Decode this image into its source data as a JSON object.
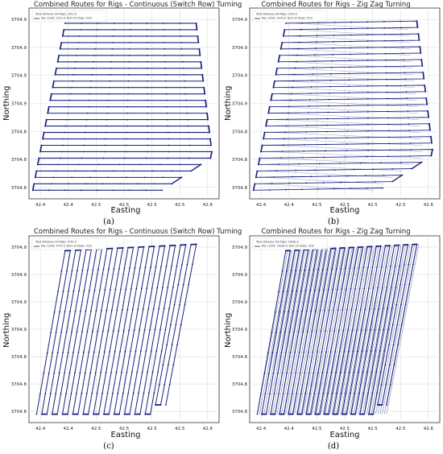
{
  "chart_data": [
    {
      "type": "line",
      "panel_label": "(a)",
      "title": "Combined Routes for Rigs - Continuous (Switch Row) Turning",
      "xlabel": "Easting",
      "ylabel": "Northing",
      "x_ticks": [
        "42.4",
        "42.4",
        "42.5",
        "42.5",
        "42.5",
        "42.5",
        "42.6"
      ],
      "y_ticks": [
        "3704.9",
        "3704.9",
        "3704.9",
        "3704.9",
        "3704.8",
        "3704.8",
        "3704.8"
      ],
      "legend": {
        "position": "top-left",
        "lines": [
          "Total Distance (All Rigs): 2512.0",
          "Rig 1 (Dist: 2512.0, Num of Stops: 319)"
        ]
      },
      "pattern": "horizontal_rows",
      "rows": 27,
      "grid": true,
      "color": "#1a237e"
    },
    {
      "type": "line",
      "panel_label": "(b)",
      "title": "Combined Routes for Rigs - Zig Zag Turning",
      "xlabel": "Easting",
      "ylabel": "Northing",
      "x_ticks": [
        "42.4",
        "42.4",
        "42.5",
        "42.5",
        "42.5",
        "42.5",
        "42.6"
      ],
      "y_ticks": [
        "3704.9",
        "3704.9",
        "3704.9",
        "3704.9",
        "3704.8",
        "3704.8",
        "3704.8"
      ],
      "legend": {
        "position": "top-left",
        "lines": [
          "Total Distance (All Rigs): 2934.0",
          "Rig 1 (Dist: 2934.0, Num of Stops: 319)"
        ]
      },
      "pattern": "zigzag_rows",
      "rows": 27,
      "grid": true,
      "color": "#1a237e"
    },
    {
      "type": "line",
      "panel_label": "(c)",
      "title": "Combined Routes for Rigs - Continuous (Switch Row) Turning",
      "xlabel": "Easting",
      "ylabel": "Northing",
      "x_ticks": [
        "42.4",
        "42.4",
        "42.5",
        "42.5",
        "42.5",
        "42.5",
        "42.6"
      ],
      "y_ticks": [
        "3704.9",
        "3704.9",
        "3704.9",
        "3704.9",
        "3704.8",
        "3704.8",
        "3704.8"
      ],
      "legend": {
        "position": "top-left",
        "lines": [
          "Total Distance (All Rigs): 9707.0",
          "Rig 1 (Dist: 9707.0, Num of Stops: 319)"
        ]
      },
      "pattern": "diagonal_rows",
      "rows": 26,
      "grid": true,
      "color": "#1a237e"
    },
    {
      "type": "line",
      "panel_label": "(d)",
      "title": "Combined Routes for Rigs - Zig Zag Turning",
      "xlabel": "Easting",
      "ylabel": "Northing",
      "x_ticks": [
        "42.4",
        "42.4",
        "42.5",
        "42.5",
        "42.5",
        "42.5",
        "42.6"
      ],
      "y_ticks": [
        "3704.9",
        "3704.9",
        "3704.9",
        "3704.9",
        "3704.8",
        "3704.8",
        "3704.8"
      ],
      "legend": {
        "position": "top-left",
        "lines": [
          "Total Distance (All Rigs): 16282.0",
          "Rig 1 (Dist: 16282.0, Num of Stops: 319)"
        ]
      },
      "pattern": "diagonal_zigzag",
      "rows": 30,
      "grid": true,
      "color": "#1a237e"
    }
  ]
}
